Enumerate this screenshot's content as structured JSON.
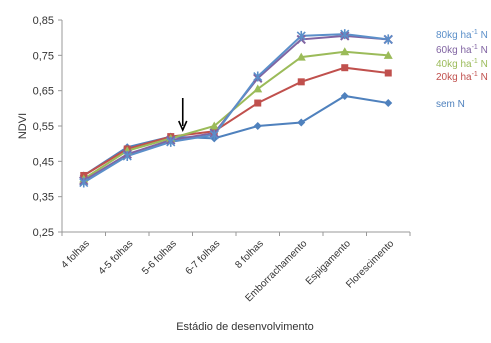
{
  "chart_data": {
    "type": "line",
    "title": "",
    "xlabel": "Estádio de desenvolvimento",
    "ylabel": "NDVI",
    "ylim": [
      0.25,
      0.85
    ],
    "y_ticks": [
      "0,25",
      "0,35",
      "0,45",
      "0,55",
      "0,65",
      "0,75",
      "0,85"
    ],
    "categories": [
      "4 folhas",
      "4-5 folhas",
      "5-6 folhas",
      "6-7 folhas",
      "8 folhas",
      "Emborrachamento",
      "Espigamento",
      "Florescimento"
    ],
    "grid": false,
    "legend": "right (labels at line ends)",
    "annotation": {
      "type": "arrow",
      "category": "5-6 folhas",
      "direction": "down"
    },
    "series": [
      {
        "name": "80kg ha-1 N",
        "label_main": "80kg ha",
        "label_sup": "-1",
        "label_tail": " N",
        "color": "#5b8fc9",
        "marker": "star",
        "values": [
          0.39,
          0.465,
          0.505,
          0.525,
          0.69,
          0.805,
          0.81,
          0.795
        ]
      },
      {
        "name": "60kg ha-1 N",
        "label_main": "60kg ha",
        "label_sup": "-1",
        "label_tail": " N",
        "color": "#8064a2",
        "marker": "x",
        "values": [
          0.395,
          0.47,
          0.51,
          0.53,
          0.685,
          0.795,
          0.805,
          0.795
        ]
      },
      {
        "name": "40kg ha-1 N",
        "label_main": "40kg ha",
        "label_sup": "-1",
        "label_tail": " N",
        "color": "#9bbb59",
        "marker": "triangle",
        "values": [
          0.4,
          0.48,
          0.515,
          0.55,
          0.655,
          0.745,
          0.76,
          0.75
        ]
      },
      {
        "name": "20kg ha-1 N",
        "label_main": "20kg ha",
        "label_sup": "-1",
        "label_tail": " N",
        "color": "#c0504d",
        "marker": "square",
        "values": [
          0.41,
          0.485,
          0.52,
          0.535,
          0.615,
          0.675,
          0.715,
          0.7
        ]
      },
      {
        "name": "sem N",
        "label_main": "sem N",
        "label_sup": "",
        "label_tail": "",
        "color": "#4f81bd",
        "marker": "diamond",
        "values": [
          0.41,
          0.49,
          0.52,
          0.515,
          0.55,
          0.56,
          0.635,
          0.615
        ]
      }
    ]
  }
}
